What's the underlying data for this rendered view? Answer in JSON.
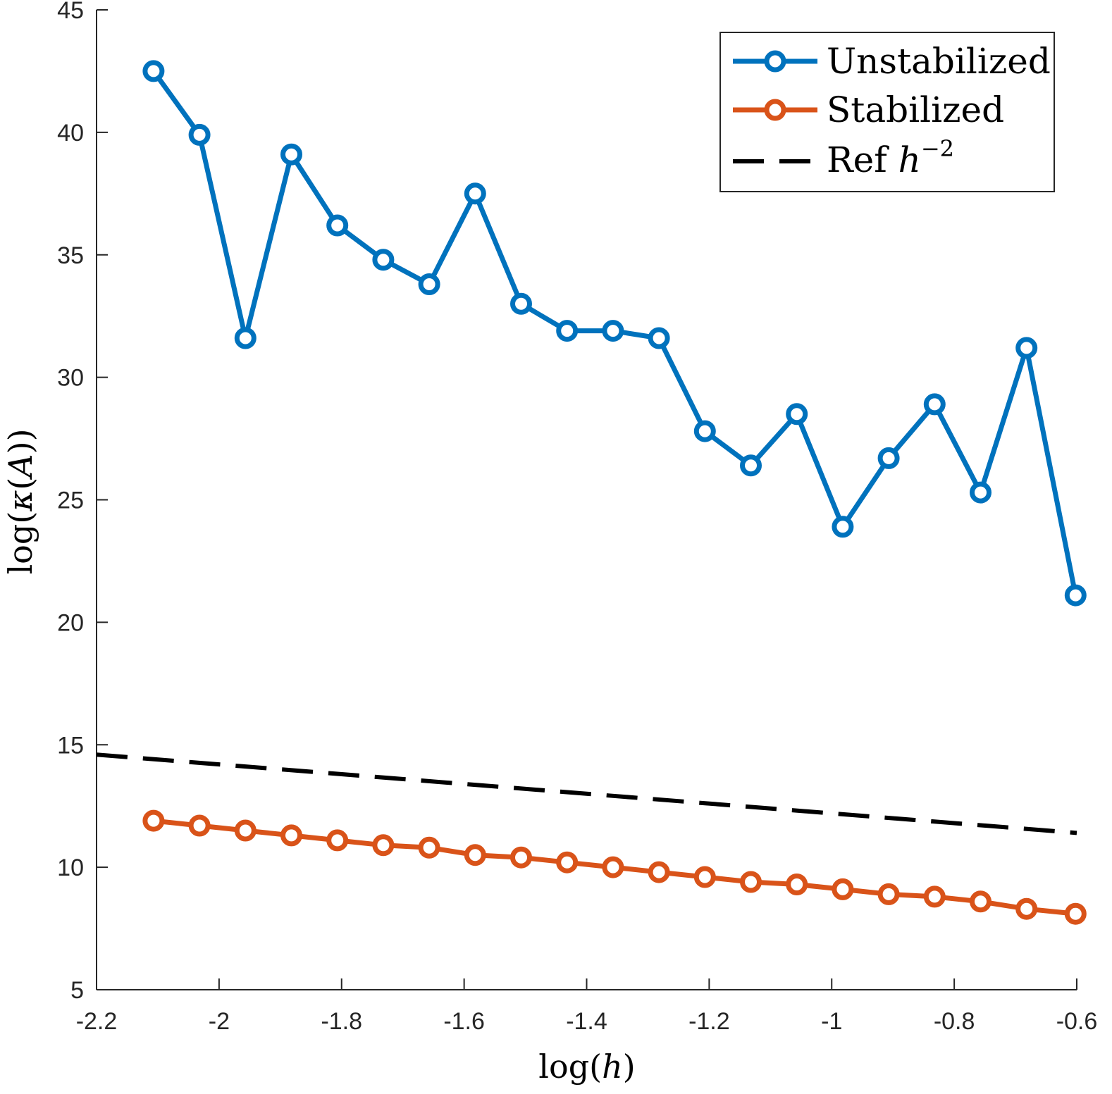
{
  "chart_data": {
    "type": "line",
    "title": "",
    "xlabel": {
      "prefix": "log(",
      "var": "h",
      "suffix": ")"
    },
    "ylabel": {
      "prefix": "log(",
      "kappa": "κ",
      "open": "(",
      "var": "A",
      "suffix": "))"
    },
    "xlim": [
      -2.2,
      -0.6
    ],
    "ylim": [
      5,
      45
    ],
    "xticks": [
      -2.2,
      -2,
      -1.8,
      -1.6,
      -1.4,
      -1.2,
      -1,
      -0.8,
      -0.6
    ],
    "xtick_labels": [
      "-2.2",
      "-2",
      "-1.8",
      "-1.6",
      "-1.4",
      "-1.2",
      "-1",
      "-0.8",
      "-0.6"
    ],
    "yticks": [
      5,
      10,
      15,
      20,
      25,
      30,
      35,
      40,
      45
    ],
    "ytick_labels": [
      "5",
      "10",
      "15",
      "20",
      "25",
      "30",
      "35",
      "40",
      "45"
    ],
    "grid": false,
    "legend_position": "top-right",
    "x": [
      -2.107,
      -2.032,
      -1.957,
      -1.882,
      -1.807,
      -1.732,
      -1.657,
      -1.582,
      -1.507,
      -1.432,
      -1.357,
      -1.282,
      -1.207,
      -1.132,
      -1.057,
      -0.982,
      -0.907,
      -0.832,
      -0.757,
      -0.682,
      -0.602
    ],
    "series": [
      {
        "name": "Unstabilized",
        "color": "#0072BD",
        "style": "solid",
        "marker": "circle",
        "values": [
          42.5,
          39.9,
          31.6,
          39.1,
          36.2,
          34.8,
          33.8,
          37.5,
          33.0,
          31.9,
          31.9,
          31.6,
          27.8,
          26.4,
          28.5,
          23.9,
          26.7,
          28.9,
          25.3,
          31.2,
          21.1
        ]
      },
      {
        "name": "Stabilized",
        "color": "#D95319",
        "style": "solid",
        "marker": "circle",
        "values": [
          11.9,
          11.7,
          11.5,
          11.3,
          11.1,
          10.9,
          10.8,
          10.5,
          10.4,
          10.2,
          10.0,
          9.8,
          9.6,
          9.4,
          9.3,
          9.1,
          8.9,
          8.8,
          8.6,
          8.3,
          8.1
        ]
      },
      {
        "name": "Ref h^-2",
        "color": "#000000",
        "style": "dashed",
        "marker": "none",
        "x": [
          -2.2,
          -0.6
        ],
        "values": [
          14.6,
          11.4
        ]
      }
    ],
    "legend": [
      {
        "label": "Unstabilized",
        "series": 0
      },
      {
        "label": "Stabilized",
        "series": 1
      },
      {
        "label_prefix": "Ref ",
        "label_var": "h",
        "label_exp": "−2",
        "series": 2
      }
    ]
  }
}
